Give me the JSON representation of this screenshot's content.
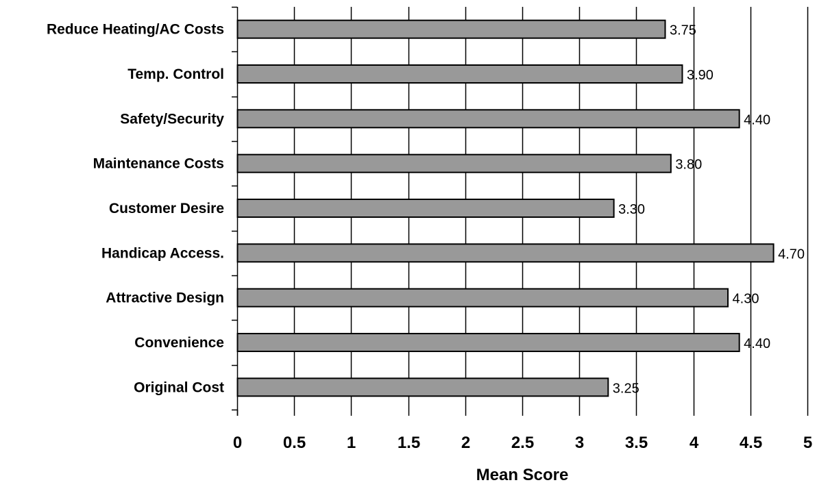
{
  "chart_data": {
    "type": "bar",
    "orientation": "horizontal",
    "title": "",
    "xlabel": "Mean Score",
    "ylabel": "",
    "categories": [
      "Reduce Heating/AC Costs",
      "Temp. Control",
      "Safety/Security",
      "Maintenance Costs",
      "Customer Desire",
      "Handicap Access.",
      "Attractive Design",
      "Convenience",
      "Original Cost"
    ],
    "values": [
      3.75,
      3.9,
      4.4,
      3.8,
      3.3,
      4.7,
      4.3,
      4.4,
      3.25
    ],
    "data_labels": [
      "3.75",
      "3.90",
      "4.40",
      "3.80",
      "3.30",
      "4.70",
      "4.30",
      "4.40",
      "3.25"
    ],
    "xlim": [
      0,
      5
    ],
    "x_ticks": [
      "0",
      "0.5",
      "1",
      "1.5",
      "2",
      "2.5",
      "3",
      "3.5",
      "4",
      "4.5",
      "5"
    ],
    "grid": "vertical",
    "legend": "none",
    "colors": {
      "bar": "#999999",
      "bar_stroke": "#000000",
      "grid": "#000000"
    }
  }
}
